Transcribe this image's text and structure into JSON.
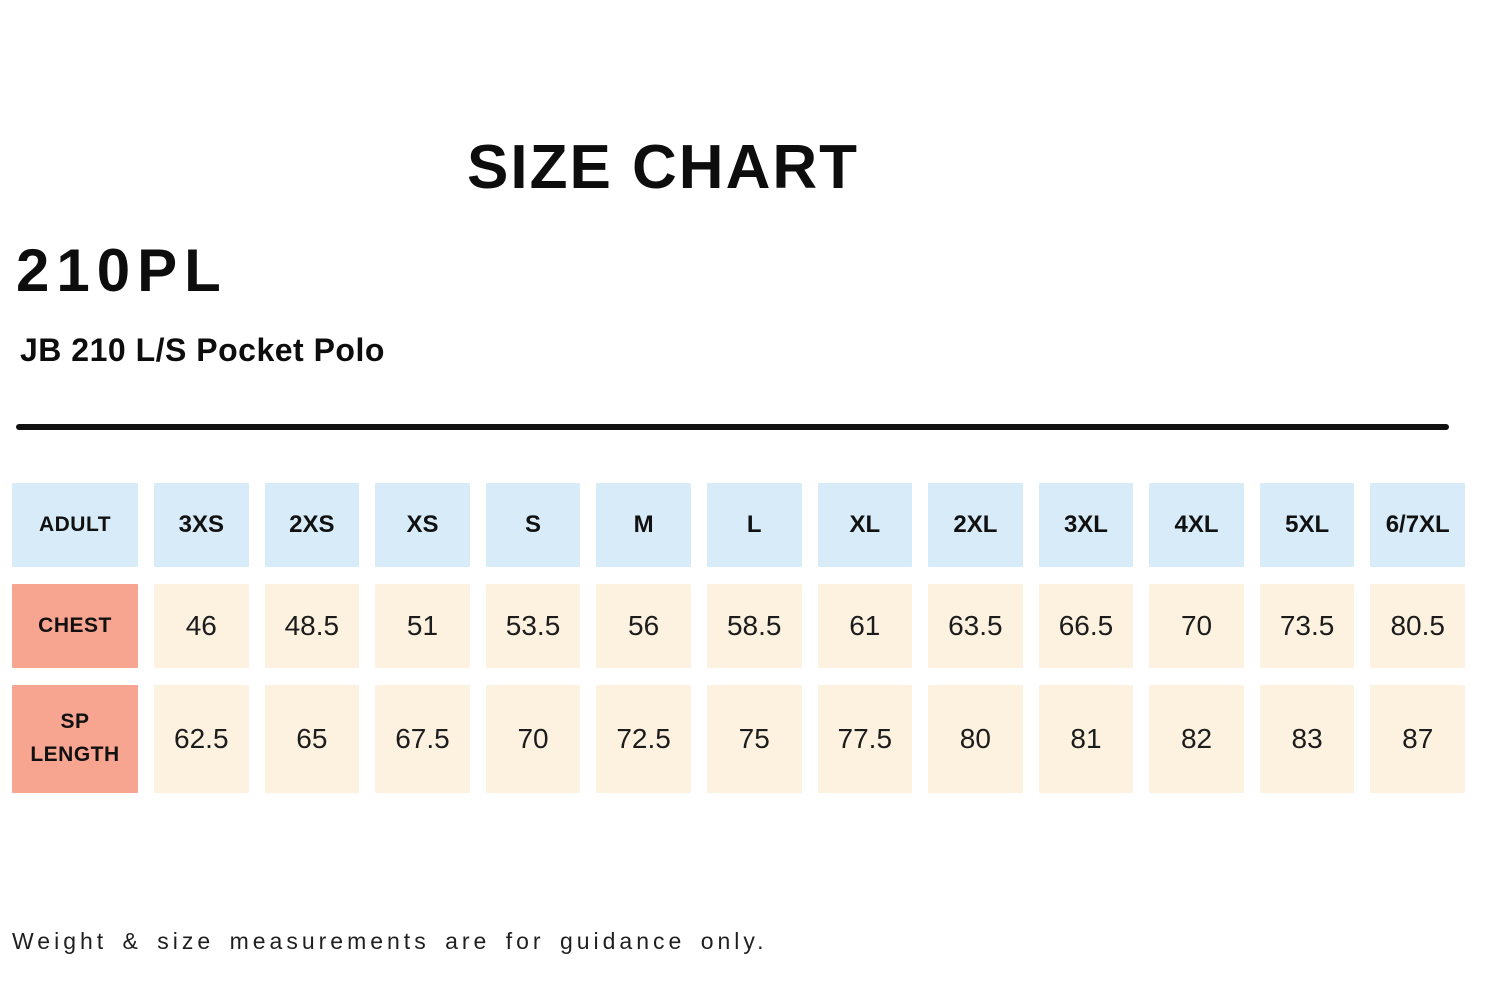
{
  "title": "SIZE CHART",
  "product": {
    "code": "210PL",
    "name": "JB 210 L/S Pocket Polo"
  },
  "table": {
    "header": {
      "label": "ADULT",
      "sizes": [
        "3XS",
        "2XS",
        "XS",
        "S",
        "M",
        "L",
        "XL",
        "2XL",
        "3XL",
        "4XL",
        "5XL",
        "6/7XL"
      ]
    },
    "rows": [
      {
        "label": "CHEST",
        "values": [
          "46",
          "48.5",
          "51",
          "53.5",
          "56",
          "58.5",
          "61",
          "63.5",
          "66.5",
          "70",
          "73.5",
          "80.5"
        ]
      },
      {
        "label": "SP LENGTH",
        "values": [
          "62.5",
          "65",
          "67.5",
          "70",
          "72.5",
          "75",
          "77.5",
          "80",
          "81",
          "82",
          "83",
          "87"
        ]
      }
    ]
  },
  "footer": {
    "note": "Weight & size measurements are for guidance only."
  },
  "colors": {
    "header_bg": "#D7EBF8",
    "label_bg": "#F7A491",
    "value_bg": "#FDF1E0",
    "divider": "#111111",
    "text": "#111111"
  },
  "chart_data": {
    "type": "table",
    "title": "SIZE CHART",
    "subtitle": "210PL — JB 210 L/S Pocket Polo",
    "categories": [
      "3XS",
      "2XS",
      "XS",
      "S",
      "M",
      "L",
      "XL",
      "2XL",
      "3XL",
      "4XL",
      "5XL",
      "6/7XL"
    ],
    "series": [
      {
        "name": "CHEST",
        "values": [
          46,
          48.5,
          51,
          53.5,
          56,
          58.5,
          61,
          63.5,
          66.5,
          70,
          73.5,
          80.5
        ]
      },
      {
        "name": "SP LENGTH",
        "values": [
          62.5,
          65,
          67.5,
          70,
          72.5,
          75,
          77.5,
          80,
          81,
          82,
          83,
          87
        ]
      }
    ],
    "note": "Weight & size measurements are for guidance only."
  }
}
